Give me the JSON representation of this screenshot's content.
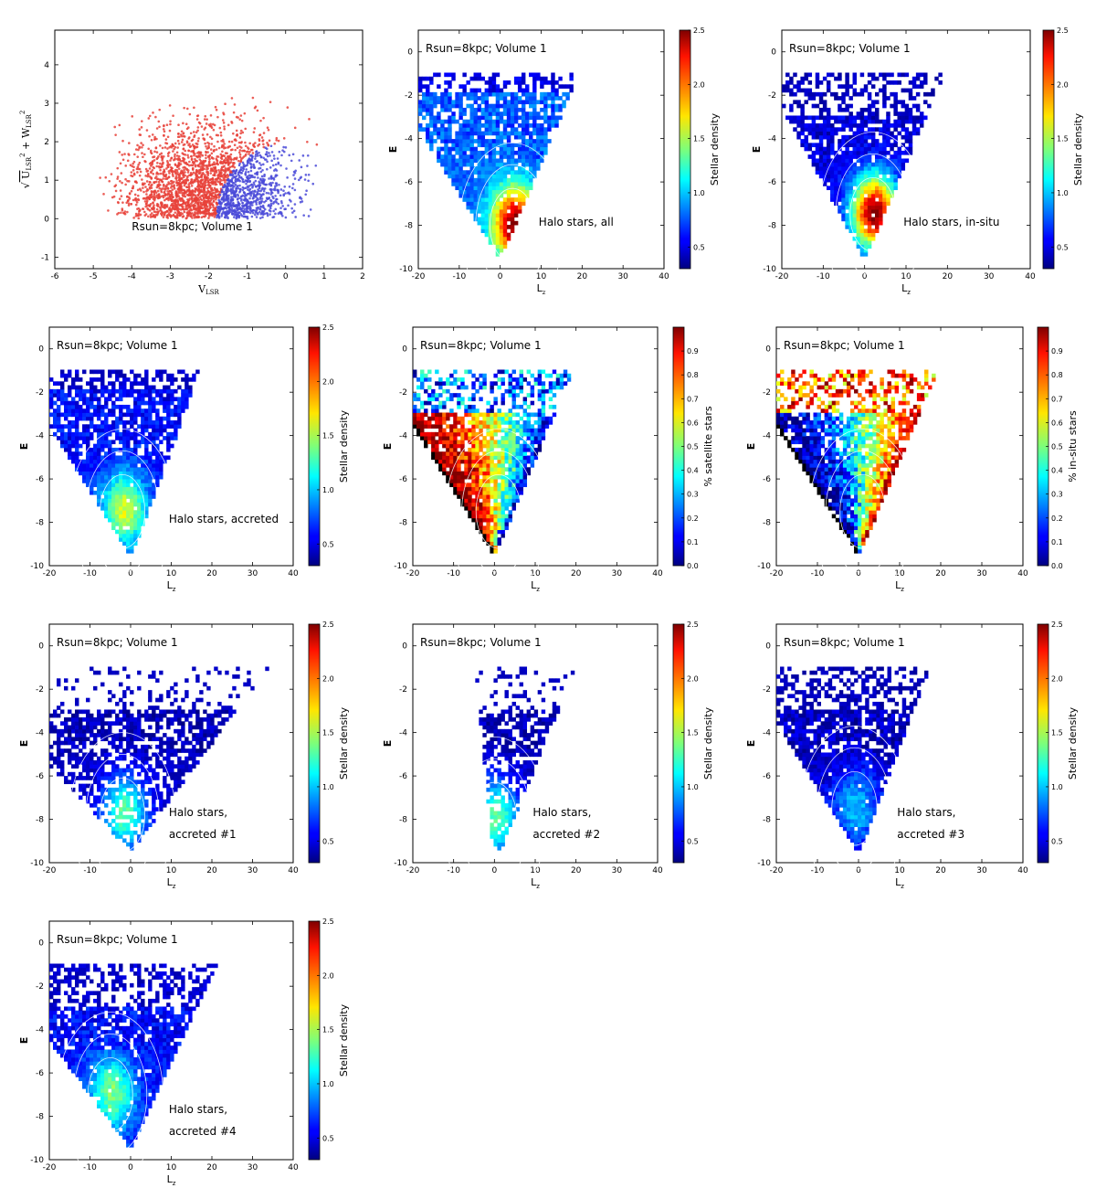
{
  "figure": {
    "title": ""
  },
  "chart_data": [
    {
      "id": "p1",
      "type": "scatter",
      "title": "",
      "annotation": "Rsun=8kpc; Volume 1",
      "xlabel": "V_LSR",
      "ylabel": "sqrt(U_LSR^2 + W_LSR^2)",
      "xlim": [
        -6,
        2
      ],
      "ylim": [
        -1.3,
        4.9
      ],
      "xticks": [
        -6,
        -5,
        -4,
        -3,
        -2,
        -1,
        0,
        1,
        2
      ],
      "yticks": [
        -1,
        0,
        1,
        2,
        3,
        4
      ],
      "series": [
        {
          "name": "",
          "color": "#e8423a",
          "region": "outside circle centered (0.2,0) radius 2.0",
          "x_range": [
            -5,
            1
          ],
          "y_range": [
            0,
            3.6
          ]
        },
        {
          "name": "",
          "color": "#4a4ad8",
          "region": "inside circle centered (0.2,0) radius 2.0",
          "x_range": [
            -1.8,
            1.2
          ],
          "y_range": [
            0,
            1.8
          ]
        }
      ]
    },
    {
      "id": "p2",
      "type": "heatmap",
      "title": "",
      "annotation": "Rsun=8kpc; Volume 1",
      "label_lines": [
        "Halo stars, all"
      ],
      "xlabel": "L_z",
      "ylabel": "E",
      "xlim": [
        -20,
        40
      ],
      "ylim": [
        -10,
        1
      ],
      "xticks": [
        -20,
        -10,
        0,
        10,
        20,
        30,
        40
      ],
      "yticks": [
        -10,
        -8,
        -6,
        -4,
        -2,
        0
      ],
      "colorbar": {
        "label": "Stellar density",
        "range": [
          0.3,
          2.5
        ],
        "ticks": [
          "0.5",
          "1.0",
          "1.5",
          "2.0",
          "2.5"
        ]
      },
      "peak": [
        3,
        -8
      ],
      "peak_value": 2.5,
      "bg_value": 0.8,
      "wedge_slope_left": 0.3,
      "wedge_slope_right": 0.45,
      "dense_top": -2
    },
    {
      "id": "p3",
      "type": "heatmap",
      "title": "",
      "annotation": "Rsun=8kpc; Volume 1",
      "label_lines": [
        "Halo stars, in-situ"
      ],
      "xlabel": "L_z",
      "ylabel": "E",
      "xlim": [
        -20,
        40
      ],
      "ylim": [
        -10,
        1
      ],
      "xticks": [
        -20,
        -10,
        0,
        10,
        20,
        30,
        40
      ],
      "yticks": [
        -10,
        -8,
        -6,
        -4,
        -2,
        0
      ],
      "colorbar": {
        "label": "Stellar density",
        "range": [
          0.3,
          2.5
        ],
        "ticks": [
          "0.5",
          "1.0",
          "1.5",
          "2.0",
          "2.5"
        ]
      },
      "peak": [
        2,
        -7.5
      ],
      "peak_value": 2.5,
      "bg_value": 0.5,
      "wedge_slope_left": 0.35,
      "wedge_slope_right": 0.45,
      "dense_top": -3
    },
    {
      "id": "p4",
      "type": "heatmap",
      "title": "",
      "annotation": "Rsun=8kpc; Volume 1",
      "label_lines": [
        "Halo stars, accreted"
      ],
      "xlabel": "L_z",
      "ylabel": "E",
      "xlim": [
        -20,
        40
      ],
      "ylim": [
        -10,
        1
      ],
      "xticks": [
        -20,
        -10,
        0,
        10,
        20,
        30,
        40
      ],
      "yticks": [
        -10,
        -8,
        -6,
        -4,
        -2,
        0
      ],
      "colorbar": {
        "label": "Stellar density",
        "range": [
          0.3,
          2.5
        ],
        "ticks": [
          "0.5",
          "1.0",
          "1.5",
          "2.0",
          "2.5"
        ]
      },
      "peak": [
        -2,
        -7.5
      ],
      "peak_value": 1.6,
      "bg_value": 0.6,
      "wedge_slope_left": 0.3,
      "wedge_slope_right": 0.5,
      "dense_top": -2
    },
    {
      "id": "p5",
      "type": "heatmap",
      "title": "",
      "annotation": "Rsun=8kpc; Volume 1",
      "label_lines": [],
      "xlabel": "L_z",
      "ylabel": "E",
      "xlim": [
        -20,
        40
      ],
      "ylim": [
        -10,
        1
      ],
      "xticks": [
        -20,
        -10,
        0,
        10,
        20,
        30,
        40
      ],
      "yticks": [
        -10,
        -8,
        -6,
        -4,
        -2,
        0
      ],
      "colorbar": {
        "label": "% satellite stars",
        "range": [
          0,
          1
        ],
        "ticks": [
          "0.0",
          "0.1",
          "0.2",
          "0.3",
          "0.4",
          "0.5",
          "0.6",
          "0.7",
          "0.8",
          "0.9"
        ]
      },
      "mode": "fraction_accreted"
    },
    {
      "id": "p6",
      "type": "heatmap",
      "title": "",
      "annotation": "Rsun=8kpc; Volume 1",
      "label_lines": [],
      "xlabel": "L_z",
      "ylabel": "E",
      "xlim": [
        -20,
        40
      ],
      "ylim": [
        -10,
        1
      ],
      "xticks": [
        -20,
        -10,
        0,
        10,
        20,
        30,
        40
      ],
      "yticks": [
        -10,
        -8,
        -6,
        -4,
        -2,
        0
      ],
      "colorbar": {
        "label": "% in-situ stars",
        "range": [
          0,
          1
        ],
        "ticks": [
          "0.0",
          "0.1",
          "0.2",
          "0.3",
          "0.4",
          "0.5",
          "0.6",
          "0.7",
          "0.8",
          "0.9"
        ]
      },
      "mode": "fraction_insitu"
    },
    {
      "id": "p7",
      "type": "heatmap",
      "title": "",
      "annotation": "Rsun=8kpc; Volume 1",
      "label_lines": [
        "Halo stars,",
        "accreted #1"
      ],
      "xlabel": "L_z",
      "ylabel": "E",
      "xlim": [
        -20,
        40
      ],
      "ylim": [
        -10,
        1
      ],
      "xticks": [
        -20,
        -10,
        0,
        10,
        20,
        30,
        40
      ],
      "yticks": [
        -10,
        -8,
        -6,
        -4,
        -2,
        0
      ],
      "colorbar": {
        "label": "Stellar density",
        "range": [
          0.3,
          2.5
        ],
        "ticks": [
          "0.5",
          "1.0",
          "1.5",
          "2.0",
          "2.5"
        ]
      },
      "peak": [
        -2,
        -7.8
      ],
      "peak_value": 1.3,
      "bg_value": 0.4,
      "wedge_slope_left": 0.2,
      "wedge_slope_right": 0.25,
      "dense_top": -3
    },
    {
      "id": "p8",
      "type": "heatmap",
      "title": "",
      "annotation": "Rsun=8kpc; Volume 1",
      "label_lines": [
        "Halo stars,",
        "accreted #2"
      ],
      "xlabel": "L_z",
      "ylabel": "E",
      "xlim": [
        -20,
        40
      ],
      "ylim": [
        -10,
        1
      ],
      "xticks": [
        -20,
        -10,
        0,
        10,
        20,
        30,
        40
      ],
      "yticks": [
        -10,
        -8,
        -6,
        -4,
        -2,
        0
      ],
      "colorbar": {
        "label": "Stellar density",
        "range": [
          0.3,
          2.5
        ],
        "ticks": [
          "0.5",
          "1.0",
          "1.5",
          "2.0",
          "2.5"
        ]
      },
      "peak": [
        0,
        -8
      ],
      "peak_value": 1.3,
      "bg_value": 0.4,
      "wedge_slope_left": 0.45,
      "wedge_slope_right": 0.45,
      "dense_top": -3,
      "shift": 4
    },
    {
      "id": "p9",
      "type": "heatmap",
      "title": "",
      "annotation": "Rsun=8kpc; Volume 1",
      "label_lines": [
        "Halo stars,",
        "accreted #3"
      ],
      "xlabel": "L_z",
      "ylabel": "E",
      "xlim": [
        -20,
        40
      ],
      "ylim": [
        -10,
        1
      ],
      "xticks": [
        -20,
        -10,
        0,
        10,
        20,
        30,
        40
      ],
      "yticks": [
        -10,
        -8,
        -6,
        -4,
        -2,
        0
      ],
      "colorbar": {
        "label": "Stellar density",
        "range": [
          0.3,
          2.5
        ],
        "ticks": [
          "0.5",
          "1.0",
          "1.5",
          "2.0",
          "2.5"
        ]
      },
      "peak": [
        -1,
        -7.5
      ],
      "peak_value": 1.0,
      "bg_value": 0.45,
      "wedge_slope_left": 0.3,
      "wedge_slope_right": 0.5,
      "dense_top": -3
    },
    {
      "id": "p10",
      "type": "heatmap",
      "title": "",
      "annotation": "Rsun=8kpc; Volume 1",
      "label_lines": [
        "Halo stars,",
        "accreted #4"
      ],
      "xlabel": "L_z",
      "ylabel": "E",
      "xlim": [
        -20,
        40
      ],
      "ylim": [
        -10,
        1
      ],
      "xticks": [
        -20,
        -10,
        0,
        10,
        20,
        30,
        40
      ],
      "yticks": [
        -10,
        -8,
        -6,
        -4,
        -2,
        0
      ],
      "colorbar": {
        "label": "Stellar density",
        "range": [
          0.3,
          2.5
        ],
        "ticks": [
          "0.5",
          "1.0",
          "1.5",
          "2.0",
          "2.5"
        ]
      },
      "peak": [
        -5,
        -7
      ],
      "peak_value": 1.4,
      "bg_value": 0.6,
      "wedge_slope_left": 0.25,
      "wedge_slope_right": 0.4,
      "dense_top": -3
    }
  ]
}
